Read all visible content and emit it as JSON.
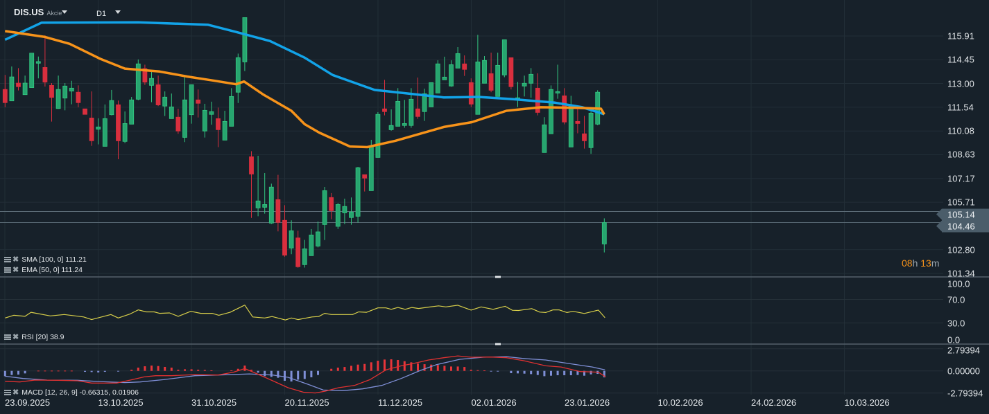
{
  "header": {
    "symbol": "DIS.US",
    "asset_type": "Akcie",
    "timeframe": "D1"
  },
  "colors": {
    "bg": "#17212a",
    "up": "#27a56f",
    "up_border": "#33c882",
    "down": "#d92f3e",
    "sma": "#12a3e8",
    "ema": "#f7931a",
    "rsi": "#d8cf4a",
    "macd": "#e03131",
    "signal": "#7f8fd6",
    "hist_pos": "#e8353a",
    "hist_neg": "#7f8fd6"
  },
  "legend": {
    "sma": "SMA [100,  0] 111.21",
    "ema": "EMA [50,  0] 111.24",
    "rsi": "RSI [20]  38.9",
    "macd": "MACD [12, 26, 9] -0.66315,  0.01906"
  },
  "price_axis": {
    "ticks": [
      "115.91",
      "114.45",
      "113.00",
      "111.54",
      "110.08",
      "108.63",
      "107.17",
      "105.71",
      "102.80",
      "101.34"
    ],
    "ask": "105.14",
    "bid": "104.46"
  },
  "countdown": {
    "hours": "08",
    "h": "h",
    "minutes": "13",
    "m": "m"
  },
  "rsi_axis": [
    "100.0",
    "70.0",
    "30.0",
    "0.0"
  ],
  "macd_axis": [
    "2.79394",
    "0.00000",
    "-2.79394"
  ],
  "dates": [
    "23.09.2025",
    "13.10.2025",
    "31.10.2025",
    "20.11.2025",
    "11.12.2025",
    "02.01.2026",
    "23.01.2026",
    "10.02.2026",
    "24.02.2026",
    "10.03.2026"
  ],
  "chart_data": {
    "type": "candlestick",
    "ohlc": [
      [
        112.63,
        113.52,
        111.54,
        111.82
      ],
      [
        111.93,
        114.04,
        111.93,
        113.4
      ],
      [
        113.02,
        113.94,
        112.57,
        112.8
      ],
      [
        112.31,
        113.48,
        112.31,
        113.02
      ],
      [
        112.74,
        114.86,
        112.74,
        114.86
      ],
      [
        114.24,
        114.65,
        113.31,
        114.34
      ],
      [
        113.98,
        115.95,
        112.81,
        113.08
      ],
      [
        112.88,
        113.02,
        110.66,
        112.14
      ],
      [
        111.46,
        113.48,
        111.44,
        112.63
      ],
      [
        112.1,
        113.02,
        111.35,
        112.84
      ],
      [
        112.53,
        113.16,
        111.72,
        112.71
      ],
      [
        112.46,
        112.88,
        111.54,
        111.82
      ],
      [
        111.44,
        111.44,
        111.1,
        111.1
      ],
      [
        110.88,
        112.51,
        109.17,
        109.48
      ],
      [
        110.19,
        110.86,
        109.26,
        110.33
      ],
      [
        109.14,
        111.71,
        109.14,
        110.84
      ],
      [
        111.08,
        112.6,
        111.04,
        111.95
      ],
      [
        111.69,
        111.95,
        108.35,
        109.48
      ],
      [
        109.44,
        111.28,
        109.34,
        110.54
      ],
      [
        110.5,
        112.17,
        110.5,
        111.99
      ],
      [
        112.03,
        114.47,
        111.97,
        114.2
      ],
      [
        113.91,
        114.15,
        112.91,
        113.08
      ],
      [
        112.88,
        113.7,
        111.85,
        113.31
      ],
      [
        112.92,
        113.48,
        111.61,
        111.68
      ],
      [
        111.61,
        112.51,
        111.0,
        112.16
      ],
      [
        110.84,
        112.38,
        110.84,
        111.56
      ],
      [
        110.93,
        111.45,
        109.91,
        110.08
      ],
      [
        109.69,
        113.52,
        109.4,
        111.99
      ],
      [
        111.08,
        112.92,
        110.53,
        112.92
      ],
      [
        111.99,
        112.63,
        110.91,
        111.78
      ],
      [
        110.08,
        111.75,
        109.68,
        111.35
      ],
      [
        111.1,
        111.88,
        110.47,
        111.27
      ],
      [
        110.84,
        111.52,
        109.09,
        110.16
      ],
      [
        109.52,
        111.32,
        109.52,
        110.67
      ],
      [
        110.37,
        112.71,
        110.37,
        112.2
      ],
      [
        112.46,
        114.83,
        111.8,
        114.58
      ],
      [
        114.32,
        117.04,
        113.76,
        117.04
      ],
      [
        108.5,
        108.84,
        104.75,
        107.44
      ],
      [
        105.36,
        108.56,
        104.85,
        105.79
      ],
      [
        105.4,
        107.5,
        105.01,
        105.57
      ],
      [
        104.43,
        106.85,
        104.38,
        106.64
      ],
      [
        105.87,
        107.39,
        103.92,
        104.47
      ],
      [
        104.6,
        105.53,
        102.37,
        102.46
      ],
      [
        102.9,
        104.6,
        102.52,
        103.96
      ],
      [
        103.52,
        103.96,
        101.69,
        101.75
      ],
      [
        101.88,
        103.4,
        101.7,
        102.85
      ],
      [
        102.43,
        104.06,
        102.43,
        103.7
      ],
      [
        103.02,
        104.53,
        102.94,
        103.89
      ],
      [
        104.34,
        106.65,
        103.39,
        106.42
      ],
      [
        106.0,
        106.27,
        104.67,
        105.19
      ],
      [
        104.23,
        105.66,
        104.07,
        105.57
      ],
      [
        105.06,
        105.93,
        104.37,
        105.45
      ],
      [
        104.77,
        106.0,
        104.33,
        105.11
      ],
      [
        104.85,
        107.88,
        104.46,
        107.83
      ],
      [
        107.4,
        107.4,
        106.37,
        107.19
      ],
      [
        106.42,
        109.54,
        106.42,
        109.17
      ],
      [
        108.46,
        111.24,
        108.46,
        111.1
      ],
      [
        111.44,
        113.22,
        111.04,
        111.27
      ],
      [
        110.16,
        111.41,
        110.1,
        110.42
      ],
      [
        110.37,
        112.71,
        110.37,
        111.9
      ],
      [
        110.42,
        111.99,
        110.28,
        110.54
      ],
      [
        110.42,
        112.71,
        110.28,
        112.03
      ],
      [
        111.44,
        113.36,
        110.83,
        110.97
      ],
      [
        111.27,
        112.68,
        110.7,
        112.37
      ],
      [
        111.56,
        113.05,
        111.56,
        113.05
      ],
      [
        112.41,
        114.42,
        112.41,
        114.2
      ],
      [
        113.22,
        114.64,
        113.22,
        113.39
      ],
      [
        112.84,
        114.42,
        112.8,
        114.15
      ],
      [
        113.94,
        115.23,
        113.94,
        114.83
      ],
      [
        114.2,
        114.72,
        113.46,
        113.86
      ],
      [
        113.05,
        113.31,
        111.55,
        111.73
      ],
      [
        111.1,
        115.98,
        111.1,
        114.32
      ],
      [
        113.01,
        114.68,
        113.01,
        114.41
      ],
      [
        113.6,
        114.89,
        112.46,
        112.58
      ],
      [
        112.2,
        114.89,
        112.2,
        114.11
      ],
      [
        113.52,
        115.68,
        113.38,
        115.68
      ],
      [
        114.58,
        114.58,
        112.63,
        112.8
      ],
      [
        112.03,
        113.09,
        111.55,
        112.12
      ],
      [
        112.84,
        113.48,
        112.2,
        113.01
      ],
      [
        113.01,
        113.94,
        112.12,
        113.56
      ],
      [
        112.71,
        113.62,
        111.04,
        111.22
      ],
      [
        108.76,
        110.93,
        108.76,
        110.46
      ],
      [
        109.91,
        112.88,
        109.91,
        112.63
      ],
      [
        112.41,
        114.15,
        112.06,
        112.5
      ],
      [
        112.24,
        112.71,
        110.49,
        110.63
      ],
      [
        109.1,
        112.24,
        109.1,
        111.61
      ],
      [
        110.67,
        111.61,
        109.94,
        110.54
      ],
      [
        109.91,
        111.01,
        109.0,
        109.48
      ],
      [
        109.06,
        111.27,
        108.68,
        111.18
      ],
      [
        110.5,
        112.58,
        110.44,
        112.46
      ],
      [
        103.15,
        104.72,
        102.63,
        104.46
      ]
    ],
    "sma_100": [
      [
        0,
        115.68
      ],
      [
        5.5,
        116.73
      ],
      [
        20,
        116.75
      ],
      [
        30.5,
        116.6
      ],
      [
        34.6,
        116.17
      ],
      [
        39.8,
        115.6
      ],
      [
        45,
        114.58
      ],
      [
        49.2,
        113.52
      ],
      [
        55.5,
        112.6
      ],
      [
        65.9,
        112.14
      ],
      [
        71.1,
        112.17
      ],
      [
        76.3,
        112.03
      ],
      [
        82.6,
        111.82
      ],
      [
        86.7,
        111.54
      ],
      [
        90,
        111.11
      ]
    ],
    "ema_50": [
      [
        0,
        116.21
      ],
      [
        6,
        115.85
      ],
      [
        9.7,
        115.43
      ],
      [
        14.3,
        114.51
      ],
      [
        18,
        113.91
      ],
      [
        23.2,
        113.73
      ],
      [
        27.4,
        113.42
      ],
      [
        31.5,
        113.16
      ],
      [
        34.7,
        112.95
      ],
      [
        35.9,
        113.12
      ],
      [
        38.8,
        112.31
      ],
      [
        43,
        111.32
      ],
      [
        45,
        110.5
      ],
      [
        47.2,
        109.98
      ],
      [
        51.8,
        109.13
      ],
      [
        54.4,
        109.09
      ],
      [
        58.6,
        109.48
      ],
      [
        65.9,
        110.33
      ],
      [
        70.1,
        110.62
      ],
      [
        75.3,
        111.32
      ],
      [
        80.5,
        111.54
      ],
      [
        86,
        111.5
      ],
      [
        89.5,
        111.45
      ],
      [
        90,
        111.1
      ]
    ],
    "rsi_20": [
      [
        0,
        38.5
      ],
      [
        1.3,
        43.0
      ],
      [
        3.0,
        41.3
      ],
      [
        3.9,
        48.1
      ],
      [
        6.8,
        42.0
      ],
      [
        8.9,
        44.4
      ],
      [
        11.8,
        40.2
      ],
      [
        13.0,
        35.8
      ],
      [
        15.9,
        44.4
      ],
      [
        17.0,
        38.5
      ],
      [
        18.8,
        45.4
      ],
      [
        20.0,
        52.2
      ],
      [
        21.2,
        48.8
      ],
      [
        22.4,
        48.8
      ],
      [
        23.2,
        46.4
      ],
      [
        24.7,
        47.1
      ],
      [
        26.0,
        41.3
      ],
      [
        27.9,
        49.8
      ],
      [
        29.4,
        46.4
      ],
      [
        31.1,
        46.4
      ],
      [
        32.1,
        43.0
      ],
      [
        33.8,
        48.1
      ],
      [
        36.0,
        60.4
      ],
      [
        37.2,
        40.2
      ],
      [
        39.0,
        38.5
      ],
      [
        40.1,
        40.9
      ],
      [
        42.1,
        35.1
      ],
      [
        43.0,
        38.5
      ],
      [
        44.0,
        35.8
      ],
      [
        46.1,
        40.2
      ],
      [
        47.1,
        40.9
      ],
      [
        48.0,
        46.4
      ],
      [
        49.0,
        44.4
      ],
      [
        52.2,
        44.4
      ],
      [
        53.1,
        48.8
      ],
      [
        54.3,
        48.1
      ],
      [
        56.0,
        55.6
      ],
      [
        57.2,
        55.6
      ],
      [
        58.0,
        53.2
      ],
      [
        59.0,
        56.3
      ],
      [
        60.1,
        53.2
      ],
      [
        61.1,
        56.3
      ],
      [
        62.1,
        54.6
      ],
      [
        63.6,
        57.0
      ],
      [
        65.1,
        59.1
      ],
      [
        66.2,
        57.3
      ],
      [
        68.0,
        60.1
      ],
      [
        70.0,
        51.9
      ],
      [
        71.5,
        57.3
      ],
      [
        73.3,
        53.2
      ],
      [
        75.1,
        58.4
      ],
      [
        76.2,
        51.5
      ],
      [
        77.1,
        51.2
      ],
      [
        79.1,
        54.3
      ],
      [
        80.3,
        48.5
      ],
      [
        81.2,
        47.8
      ],
      [
        82.3,
        52.2
      ],
      [
        83.2,
        52.2
      ],
      [
        84.4,
        47.8
      ],
      [
        85.3,
        49.8
      ],
      [
        87.0,
        46.1
      ],
      [
        89.1,
        51.9
      ],
      [
        90.1,
        38.9
      ]
    ],
    "macd_hist": [
      -0.67,
      -0.52,
      -0.47,
      -0.32,
      0,
      0.03,
      0.03,
      0.03,
      0.03,
      0.03,
      0.03,
      0,
      -0.12,
      -0.15,
      -0.2,
      -0.12,
      0,
      -0.05,
      0,
      0.15,
      0.41,
      0.58,
      0.67,
      0.61,
      0.5,
      0.41,
      0.15,
      0.2,
      0.2,
      0.15,
      0.12,
      0.06,
      0,
      0,
      0.06,
      0.26,
      0.67,
      0.15,
      -0.23,
      -0.67,
      -0.76,
      -0.87,
      -1.25,
      -1.34,
      -1.11,
      -1.02,
      -0.81,
      -0.52,
      0,
      0.26,
      0.41,
      0.49,
      0.64,
      0.79,
      0.87,
      1.08,
      1.28,
      1.43,
      1.46,
      1.37,
      1.22,
      1.08,
      0.93,
      0.84,
      0.79,
      0.73,
      0.64,
      0.55,
      0.55,
      0.49,
      0.15,
      0.09,
      0.06,
      -0.06,
      -0.06,
      0,
      -0.29,
      -0.32,
      -0.35,
      -0.41,
      -0.52,
      -0.67,
      -0.61,
      -0.55,
      -0.55,
      -0.55,
      -0.52,
      -0.61,
      -0.44,
      -0.38,
      -0.82
    ],
    "macd_line": [
      [
        0,
        -1.31
      ],
      [
        2.2,
        -1.4
      ],
      [
        4.5,
        -1.16
      ],
      [
        8.0,
        -1.19
      ],
      [
        10.9,
        -1.25
      ],
      [
        13.0,
        -1.54
      ],
      [
        16.8,
        -1.54
      ],
      [
        19.1,
        -1.11
      ],
      [
        20.9,
        -0.76
      ],
      [
        22.6,
        -0.61
      ],
      [
        25.0,
        -0.61
      ],
      [
        28.5,
        -0.47
      ],
      [
        32.0,
        -0.52
      ],
      [
        34.3,
        -0.17
      ],
      [
        36.0,
        0.29
      ],
      [
        37.9,
        -0.38
      ],
      [
        40.2,
        -1.25
      ],
      [
        42.5,
        -2.12
      ],
      [
        44.9,
        -2.71
      ],
      [
        46.6,
        -2.79
      ],
      [
        48.1,
        -2.56
      ],
      [
        50.1,
        -2.12
      ],
      [
        52.5,
        -1.83
      ],
      [
        54.8,
        -1.11
      ],
      [
        57.2,
        0.12
      ],
      [
        59.5,
        0.64
      ],
      [
        61.3,
        0.93
      ],
      [
        63.6,
        1.37
      ],
      [
        65.9,
        1.66
      ],
      [
        68.0,
        1.89
      ],
      [
        70.0,
        1.72
      ],
      [
        73.0,
        1.75
      ],
      [
        75.3,
        1.66
      ],
      [
        77.9,
        1.28
      ],
      [
        81.2,
        0.64
      ],
      [
        83.5,
        0.49
      ],
      [
        86.4,
        -0.09
      ],
      [
        89.1,
        -0.17
      ],
      [
        90.2,
        -0.76
      ]
    ],
    "signal_line": [
      [
        0,
        -0.67
      ],
      [
        2.7,
        -0.96
      ],
      [
        6.3,
        -1.16
      ],
      [
        10.9,
        -1.19
      ],
      [
        13.9,
        -1.34
      ],
      [
        18.0,
        -1.48
      ],
      [
        20.3,
        -1.4
      ],
      [
        23.8,
        -1.11
      ],
      [
        28.5,
        -0.61
      ],
      [
        32.0,
        -0.52
      ],
      [
        36.7,
        -0.38
      ],
      [
        40.2,
        -0.52
      ],
      [
        42.5,
        -0.81
      ],
      [
        45.5,
        -1.69
      ],
      [
        47.8,
        -2.42
      ],
      [
        50.7,
        -2.5
      ],
      [
        53.7,
        -2.27
      ],
      [
        56.6,
        -1.83
      ],
      [
        59.5,
        -0.96
      ],
      [
        62.4,
        0.06
      ],
      [
        64.8,
        0.79
      ],
      [
        68.3,
        1.46
      ],
      [
        71.8,
        1.72
      ],
      [
        75.3,
        1.8
      ],
      [
        77.7,
        1.57
      ],
      [
        81.2,
        1.37
      ],
      [
        84.7,
        0.93
      ],
      [
        88.2,
        0.49
      ],
      [
        90.1,
        0.12
      ]
    ],
    "price_range": [
      101.34,
      115.91
    ],
    "rsi_range": [
      0,
      100
    ],
    "macd_range": [
      -2.79394,
      2.79394
    ],
    "grid": true
  }
}
